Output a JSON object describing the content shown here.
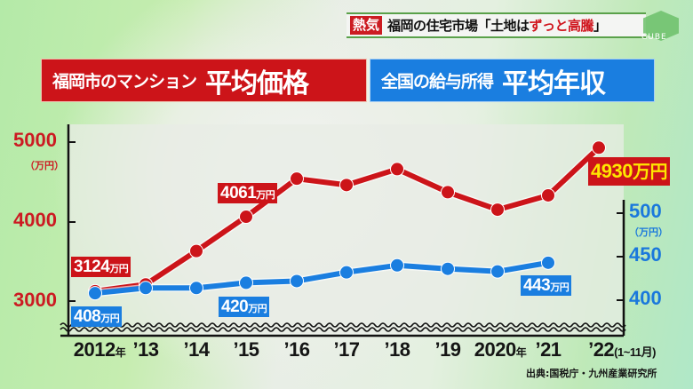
{
  "banner": {
    "tag": "熱気",
    "title_prefix": "福岡の住宅市場「土地は",
    "title_highlight": "ずっと高騰",
    "title_suffix": "」",
    "logo": "CUBE"
  },
  "headers": {
    "red": {
      "small": "福岡市のマンション",
      "big": "平均価格"
    },
    "blue": {
      "small": "全国の給与所得",
      "big": "平均年収"
    }
  },
  "axes": {
    "left": {
      "ticks": [
        "5000",
        "4000",
        "3000"
      ],
      "unit": "（万円）"
    },
    "right": {
      "ticks": [
        "500",
        "450",
        "400"
      ],
      "unit": "（万円）"
    },
    "x": [
      {
        "main": "2012",
        "suffix": "年"
      },
      {
        "main": "’13",
        "suffix": ""
      },
      {
        "main": "’14",
        "suffix": ""
      },
      {
        "main": "’15",
        "suffix": ""
      },
      {
        "main": "’16",
        "suffix": ""
      },
      {
        "main": "’17",
        "suffix": ""
      },
      {
        "main": "’18",
        "suffix": ""
      },
      {
        "main": "’19",
        "suffix": ""
      },
      {
        "main": "2020",
        "suffix": "年"
      },
      {
        "main": "’21",
        "suffix": ""
      },
      {
        "main": "’22",
        "suffix": "(1~11月)"
      }
    ]
  },
  "labels": {
    "red_2012": {
      "num": "3124",
      "unit": "万円"
    },
    "red_2015": {
      "num": "4061",
      "unit": "万円"
    },
    "red_2022": {
      "num": "4930",
      "unit": "万円"
    },
    "blue_2012": {
      "num": "408",
      "unit": "万円"
    },
    "blue_2015": {
      "num": "420",
      "unit": "万円"
    },
    "blue_2021": {
      "num": "443",
      "unit": "万円"
    }
  },
  "source": "出典:国税庁・九州産業研究所",
  "colors": {
    "red": "#cc1419",
    "blue": "#1a7ee0",
    "yellow": "#ffe600"
  },
  "chart_data": {
    "type": "line",
    "title": "福岡市のマンション 平均価格 / 全国の給与所得 平均年収",
    "categories": [
      "2012",
      "2013",
      "2014",
      "2015",
      "2016",
      "2017",
      "2018",
      "2019",
      "2020",
      "2021",
      "2022 (1~11月)"
    ],
    "series": [
      {
        "name": "福岡市のマンション 平均価格 (万円)",
        "axis": "left",
        "color": "#cc1419",
        "values": [
          3124,
          3210,
          3630,
          4061,
          4540,
          4460,
          4660,
          4370,
          4150,
          4330,
          4930
        ]
      },
      {
        "name": "全国の給与所得 平均年収 (万円)",
        "axis": "right",
        "color": "#1a7ee0",
        "values": [
          408,
          414,
          414,
          420,
          422,
          432,
          440,
          436,
          433,
          443,
          null
        ]
      }
    ],
    "ylabel_left": "万円",
    "ylabel_right": "万円",
    "ylim_left": [
      3000,
      5000
    ],
    "ylim_right": [
      400,
      500
    ],
    "left_ticks": [
      3000,
      4000,
      5000
    ],
    "right_ticks": [
      400,
      450,
      500
    ],
    "axis_break": true,
    "annotations": [
      "3124万円",
      "4061万円",
      "4930万円",
      "408万円",
      "420万円",
      "443万円"
    ],
    "grid": false,
    "legend": "headers above chart"
  }
}
